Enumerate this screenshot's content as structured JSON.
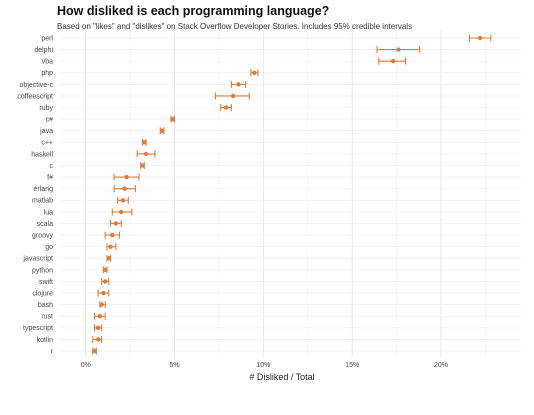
{
  "chart_data": {
    "type": "scatter",
    "title": "How disliked is each programming language?",
    "subtitle": "Based on \"likes\" and \"dislikes\" on Stack Overflow Developer Stories. Includes 95% credible intervals",
    "xlabel": "# Disliked / Total",
    "ylabel": "",
    "xlim": [
      -1.5,
      24.5
    ],
    "xticks": [
      0,
      5,
      10,
      15,
      20
    ],
    "xtick_labels": [
      "0%",
      "5%",
      "10%",
      "15%",
      "20%"
    ],
    "grid": true,
    "color": "#e07b39",
    "categories": [
      "perl",
      "delphi",
      "vba",
      "php",
      "objective-c",
      "coffeescript",
      "ruby",
      "c#",
      "java",
      "c++",
      "haskell",
      "c",
      "f#",
      "erlang",
      "matlab",
      "lua",
      "scala",
      "groovy",
      "go",
      "javascript",
      "python",
      "swift",
      "clojure",
      "bash",
      "rust",
      "typescript",
      "kotlin",
      "r"
    ],
    "values": [
      22.2,
      17.6,
      17.3,
      9.5,
      8.6,
      8.3,
      7.9,
      4.9,
      4.3,
      3.3,
      3.4,
      3.2,
      2.3,
      2.2,
      2.1,
      2.0,
      1.7,
      1.5,
      1.4,
      1.3,
      1.1,
      1.1,
      1.0,
      0.9,
      0.8,
      0.7,
      0.7,
      0.5
    ],
    "lower": [
      21.6,
      16.4,
      16.5,
      9.3,
      8.2,
      7.3,
      7.6,
      4.8,
      4.2,
      3.2,
      2.9,
      3.1,
      1.6,
      1.6,
      1.8,
      1.5,
      1.4,
      1.1,
      1.2,
      1.2,
      1.0,
      0.9,
      0.7,
      0.8,
      0.5,
      0.5,
      0.4,
      0.4
    ],
    "upper": [
      22.8,
      18.8,
      18.0,
      9.7,
      9.0,
      9.2,
      8.2,
      5.0,
      4.4,
      3.4,
      3.9,
      3.3,
      3.0,
      2.8,
      2.4,
      2.6,
      2.0,
      1.9,
      1.7,
      1.4,
      1.2,
      1.3,
      1.3,
      1.1,
      1.1,
      0.9,
      0.9,
      0.6
    ]
  }
}
